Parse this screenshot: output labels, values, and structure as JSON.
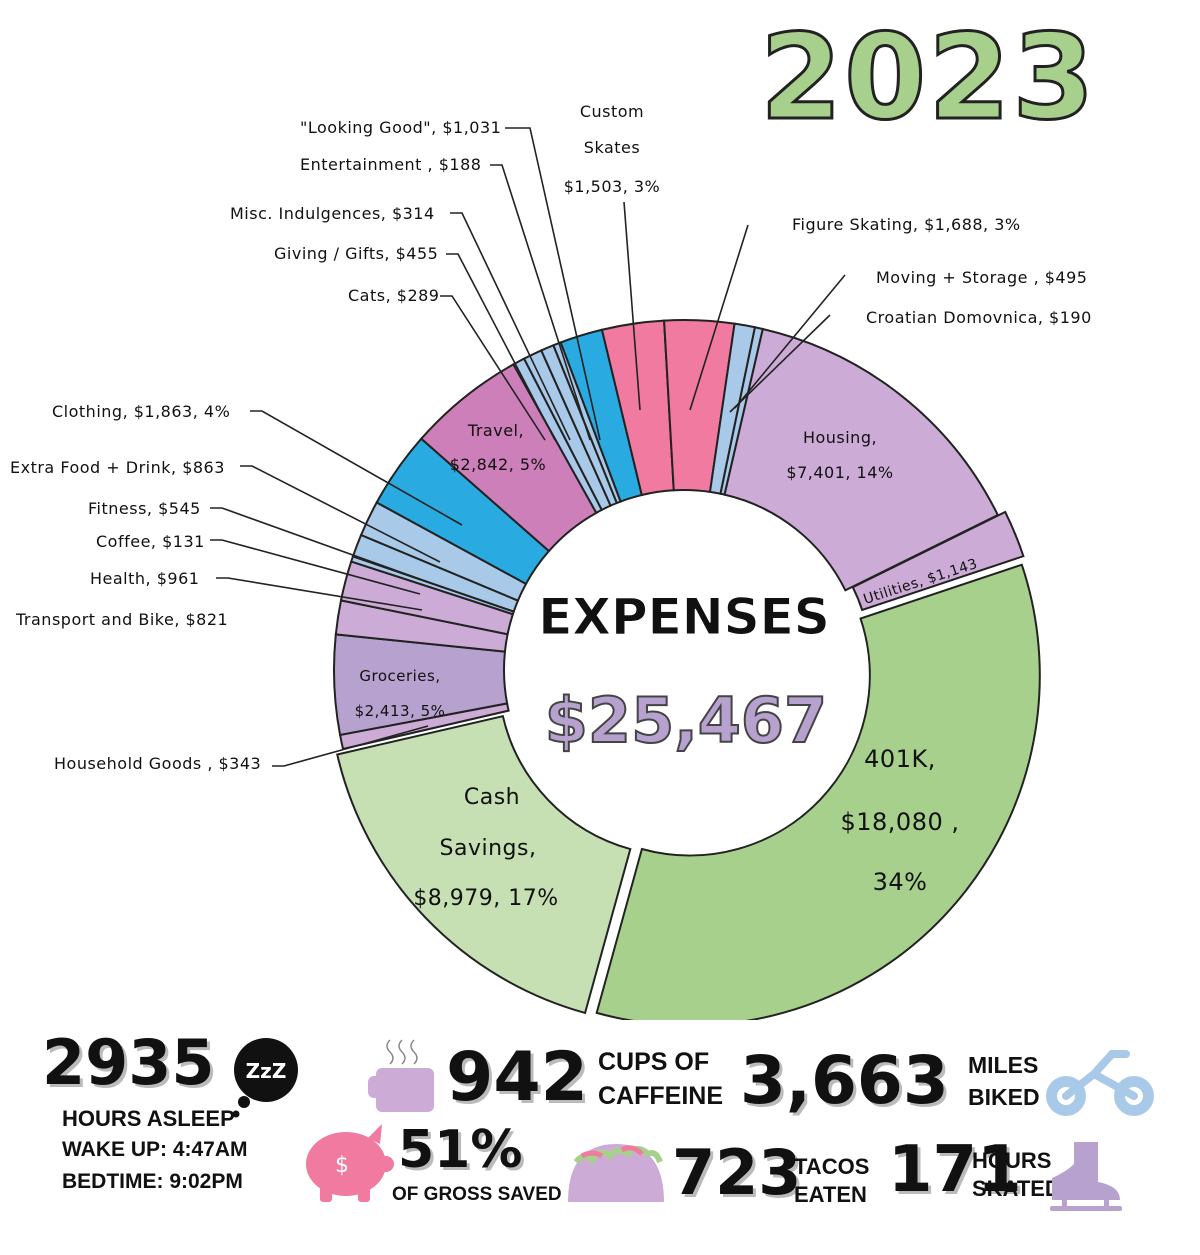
{
  "year": "2023",
  "chart_data": {
    "type": "pie",
    "center_title": "EXPENSES",
    "center_value": "$25,467",
    "slices": [
      {
        "label": "Housing,",
        "value_text": "$7,401, 14%",
        "value": 7401,
        "color": "#ccacd6"
      },
      {
        "label": "Utilities,",
        "value_text": "$1,143",
        "value": 1143,
        "color": "#ccacd6"
      },
      {
        "label": "401K,",
        "value_text": "$18,080 , 34%",
        "value": 18080,
        "color": "#a8d08d"
      },
      {
        "label": "Cash Savings,",
        "value_text": "$8,979, 17%",
        "value": 8979,
        "color": "#c6e0b4"
      },
      {
        "label": "Household Goods ,",
        "value_text": "$343",
        "value": 343,
        "color": "#ccacd6"
      },
      {
        "label": "Groceries,",
        "value_text": "$2,413, 5%",
        "value": 2413,
        "color": "#b7a2cf"
      },
      {
        "label": "Transport and Bike,",
        "value_text": "$821",
        "value": 821,
        "color": "#ccacd6"
      },
      {
        "label": "Health,",
        "value_text": "$961",
        "value": 961,
        "color": "#ccacd6"
      },
      {
        "label": "Coffee,",
        "value_text": "$131",
        "value": 131,
        "color": "#a9c9e8"
      },
      {
        "label": "Fitness,",
        "value_text": "$545",
        "value": 545,
        "color": "#a9c9e8"
      },
      {
        "label": "Extra Food + Drink,",
        "value_text": "$863",
        "value": 863,
        "color": "#a9c9e8"
      },
      {
        "label": "Clothing,",
        "value_text": "$1,863, 4%",
        "value": 1863,
        "color": "#29abe2"
      },
      {
        "label": "Travel,",
        "value_text": "$2,842, 5%",
        "value": 2842,
        "color": "#cc7fb8"
      },
      {
        "label": "Cats,",
        "value_text": "$289",
        "value": 289,
        "color": "#a9c9e8"
      },
      {
        "label": "Giving / Gifts,",
        "value_text": "$455",
        "value": 455,
        "color": "#a9c9e8"
      },
      {
        "label": "Misc. Indulgences,",
        "value_text": "$314",
        "value": 314,
        "color": "#a9c9e8"
      },
      {
        "label": "Entertainment ,",
        "value_text": "$188",
        "value": 188,
        "color": "#a9c9e8"
      },
      {
        "label": "\"Looking Good\",",
        "value_text": "$1,031",
        "value": 1031,
        "color": "#29abe2"
      },
      {
        "label": "Custom Skates",
        "value_text": "$1,503, 3%",
        "value": 1503,
        "color": "#f07aa0"
      },
      {
        "label": "Figure Skating,",
        "value_text": "$1,688, 3%",
        "value": 1688,
        "color": "#f07aa0"
      },
      {
        "label": "Moving + Storage ,",
        "value_text": "$495",
        "value": 495,
        "color": "#a9c9e8"
      },
      {
        "label": "Croatian Domovnica,",
        "value_text": "$190",
        "value": 190,
        "color": "#a9c9e8"
      }
    ]
  },
  "labels": {
    "looking_good": "\"Looking Good\", $1,031",
    "entertainment": "Entertainment , $188",
    "misc": "Misc. Indulgences, $314",
    "giving": "Giving / Gifts, $455",
    "cats": "Cats, $289",
    "custom1": "Custom",
    "custom2": "Skates",
    "custom3": "$1,503, 3%",
    "figure": "Figure Skating, $1,688, 3%",
    "moving": "Moving + Storage , $495",
    "croatian": "Croatian Domovnica, $190",
    "clothing": "Clothing, $1,863, 4%",
    "extrafood": "Extra Food + Drink, $863",
    "fitness": "Fitness, $545",
    "coffee": "Coffee, $131",
    "health": "Health, $961",
    "transport": "Transport and Bike, $821",
    "household": "Household Goods , $343",
    "travel1": "Travel,",
    "travel2": "$2,842, 5%",
    "housing1": "Housing,",
    "housing2": "$7,401, 14%",
    "utilities": "Utilities, $1,143",
    "groceries1": "Groceries,",
    "groceries2": "$2,413, 5%",
    "k1": "401K,",
    "k2": "$18,080 ,",
    "k3": "34%",
    "cash1": "Cash",
    "cash2": "Savings,",
    "cash3": "$8,979, 17%"
  },
  "stats": {
    "sleep_value": "2935",
    "sleep_label": "HOURS ASLEEP",
    "zzz": "ZzZ",
    "wake": "WAKE UP:  4:47AM",
    "bed": "BEDTIME: 9:02PM",
    "caffeine_value": "942",
    "caffeine_label1": "CUPS OF",
    "caffeine_label2": "CAFFEINE",
    "miles_value": "3,663",
    "miles_label1": "MILES",
    "miles_label2": "BIKED",
    "saved_value": "51%",
    "saved_label": "OF GROSS SAVED",
    "tacos_value": "723",
    "tacos_label1": "TACOS",
    "tacos_label2": "EATEN",
    "skated_value": "171",
    "skated_label1": "HOURS",
    "skated_label2": "SKATED",
    "icons": [
      "coffee-cup-icon",
      "bicycle-icon",
      "piggy-bank-icon",
      "taco-icon",
      "ice-skate-icon",
      "speech-bubble-icon"
    ]
  }
}
